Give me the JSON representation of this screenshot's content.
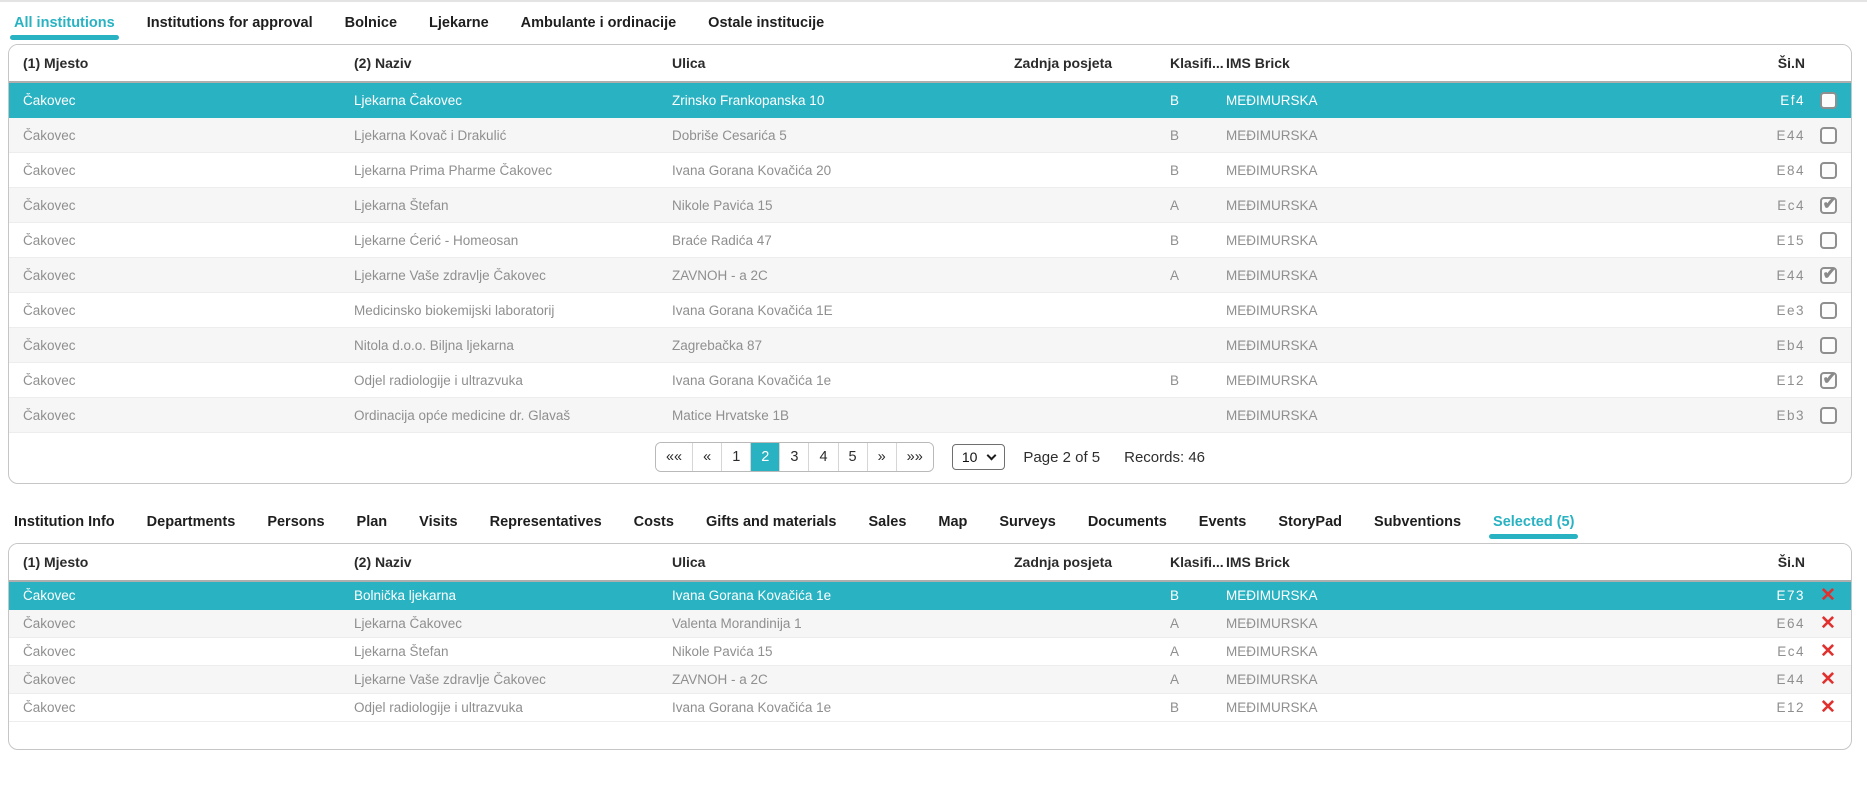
{
  "accent_color": "#28b2c2",
  "danger_color": "#e0312f",
  "top_tabs": [
    {
      "label": "All institutions",
      "active": true
    },
    {
      "label": "Institutions for approval",
      "active": false
    },
    {
      "label": "Bolnice",
      "active": false
    },
    {
      "label": "Ljekarne",
      "active": false
    },
    {
      "label": "Ambulante i ordinacije",
      "active": false
    },
    {
      "label": "Ostale institucije",
      "active": false
    }
  ],
  "top_table": {
    "columns": {
      "mjesto": "(1) Mjesto",
      "naziv": "(2) Naziv",
      "ulica": "Ulica",
      "zadnja_posjeta": "Zadnja posjeta",
      "klasifikacija": "Klasifi...",
      "ims_brick": "IMS Brick",
      "sifra": "Ši.N"
    },
    "rows": [
      {
        "mjesto": "Čakovec",
        "naziv": "Ljekarna Čakovec",
        "ulica": "Zrinsko Frankopanska 10",
        "zadnja_posjeta": "",
        "klasifikacija": "B",
        "ims_brick": "MEĐIMURSKA",
        "sifra": "Ef4",
        "checked": false,
        "selected": true
      },
      {
        "mjesto": "Čakovec",
        "naziv": "Ljekarna Kovač i Drakulić",
        "ulica": "Dobriše Cesarića 5",
        "zadnja_posjeta": "",
        "klasifikacija": "B",
        "ims_brick": "MEĐIMURSKA",
        "sifra": "E44",
        "checked": false,
        "selected": false
      },
      {
        "mjesto": "Čakovec",
        "naziv": "Ljekarna Prima Pharme Čakovec",
        "ulica": "Ivana Gorana Kovačića 20",
        "zadnja_posjeta": "",
        "klasifikacija": "B",
        "ims_brick": "MEĐIMURSKA",
        "sifra": "E84",
        "checked": false,
        "selected": false
      },
      {
        "mjesto": "Čakovec",
        "naziv": "Ljekarna Štefan",
        "ulica": "Nikole Pavića 15",
        "zadnja_posjeta": "",
        "klasifikacija": "A",
        "ims_brick": "MEĐIMURSKA",
        "sifra": "Ec4",
        "checked": true,
        "selected": false
      },
      {
        "mjesto": "Čakovec",
        "naziv": "Ljekarne Ćerić - Homeosan",
        "ulica": "Braće Radića 47",
        "zadnja_posjeta": "",
        "klasifikacija": "B",
        "ims_brick": "MEĐIMURSKA",
        "sifra": "E15",
        "checked": false,
        "selected": false
      },
      {
        "mjesto": "Čakovec",
        "naziv": "Ljekarne Vaše zdravlje Čakovec",
        "ulica": "ZAVNOH - a 2C",
        "zadnja_posjeta": "",
        "klasifikacija": "A",
        "ims_brick": "MEĐIMURSKA",
        "sifra": "E44",
        "checked": true,
        "selected": false
      },
      {
        "mjesto": "Čakovec",
        "naziv": "Medicinsko biokemijski laboratorij",
        "ulica": "Ivana Gorana Kovačića 1E",
        "zadnja_posjeta": "",
        "klasifikacija": "",
        "ims_brick": "MEĐIMURSKA",
        "sifra": "Ee3",
        "checked": false,
        "selected": false
      },
      {
        "mjesto": "Čakovec",
        "naziv": "Nitola d.o.o. Biljna ljekarna",
        "ulica": "Zagrebačka 87",
        "zadnja_posjeta": "",
        "klasifikacija": "",
        "ims_brick": "MEĐIMURSKA",
        "sifra": "Eb4",
        "checked": false,
        "selected": false
      },
      {
        "mjesto": "Čakovec",
        "naziv": "Odjel radiologije i ultrazvuka",
        "ulica": "Ivana Gorana Kovačića 1e",
        "zadnja_posjeta": "",
        "klasifikacija": "B",
        "ims_brick": "MEĐIMURSKA",
        "sifra": "E12",
        "checked": true,
        "selected": false
      },
      {
        "mjesto": "Čakovec",
        "naziv": "Ordinacija opće medicine dr. Glavaš",
        "ulica": "Matice Hrvatske 1B",
        "zadnja_posjeta": "",
        "klasifikacija": "",
        "ims_brick": "MEĐIMURSKA",
        "sifra": "Eb3",
        "checked": false,
        "selected": false
      }
    ]
  },
  "pagination": {
    "first": "««",
    "prev": "«",
    "pages": [
      "1",
      "2",
      "3",
      "4",
      "5"
    ],
    "active_page": "2",
    "next": "»",
    "last": "»»",
    "page_size": "10",
    "page_label": "Page 2 of 5",
    "records_label": "Records: 46"
  },
  "bottom_tabs": [
    {
      "label": "Institution Info",
      "active": false
    },
    {
      "label": "Departments",
      "active": false
    },
    {
      "label": "Persons",
      "active": false
    },
    {
      "label": "Plan",
      "active": false
    },
    {
      "label": "Visits",
      "active": false
    },
    {
      "label": "Representatives",
      "active": false
    },
    {
      "label": "Costs",
      "active": false
    },
    {
      "label": "Gifts and materials",
      "active": false
    },
    {
      "label": "Sales",
      "active": false
    },
    {
      "label": "Map",
      "active": false
    },
    {
      "label": "Surveys",
      "active": false
    },
    {
      "label": "Documents",
      "active": false
    },
    {
      "label": "Events",
      "active": false
    },
    {
      "label": "StoryPad",
      "active": false
    },
    {
      "label": "Subventions",
      "active": false
    },
    {
      "label": "Selected (5)",
      "active": true
    }
  ],
  "bottom_table": {
    "columns": {
      "mjesto": "(1) Mjesto",
      "naziv": "(2) Naziv",
      "ulica": "Ulica",
      "zadnja_posjeta": "Zadnja posjeta",
      "klasifikacija": "Klasifi...",
      "ims_brick": "IMS Brick",
      "sifra": "Ši.N"
    },
    "rows": [
      {
        "mjesto": "Čakovec",
        "naziv": "Bolnička ljekarna",
        "ulica": "Ivana Gorana Kovačića 1e",
        "zadnja_posjeta": "",
        "klasifikacija": "B",
        "ims_brick": "MEĐIMURSKA",
        "sifra": "E73",
        "selected": true
      },
      {
        "mjesto": "Čakovec",
        "naziv": "Ljekarna Čakovec",
        "ulica": "Valenta Morandinija 1",
        "zadnja_posjeta": "",
        "klasifikacija": "A",
        "ims_brick": "MEĐIMURSKA",
        "sifra": "E64",
        "selected": false
      },
      {
        "mjesto": "Čakovec",
        "naziv": "Ljekarna Štefan",
        "ulica": "Nikole Pavića 15",
        "zadnja_posjeta": "",
        "klasifikacija": "A",
        "ims_brick": "MEĐIMURSKA",
        "sifra": "Ec4",
        "selected": false
      },
      {
        "mjesto": "Čakovec",
        "naziv": "Ljekarne Vaše zdravlje Čakovec",
        "ulica": "ZAVNOH - a 2C",
        "zadnja_posjeta": "",
        "klasifikacija": "A",
        "ims_brick": "MEĐIMURSKA",
        "sifra": "E44",
        "selected": false
      },
      {
        "mjesto": "Čakovec",
        "naziv": "Odjel radiologije i ultrazvuka",
        "ulica": "Ivana Gorana Kovačića 1e",
        "zadnja_posjeta": "",
        "klasifikacija": "B",
        "ims_brick": "MEĐIMURSKA",
        "sifra": "E12",
        "selected": false
      }
    ]
  }
}
